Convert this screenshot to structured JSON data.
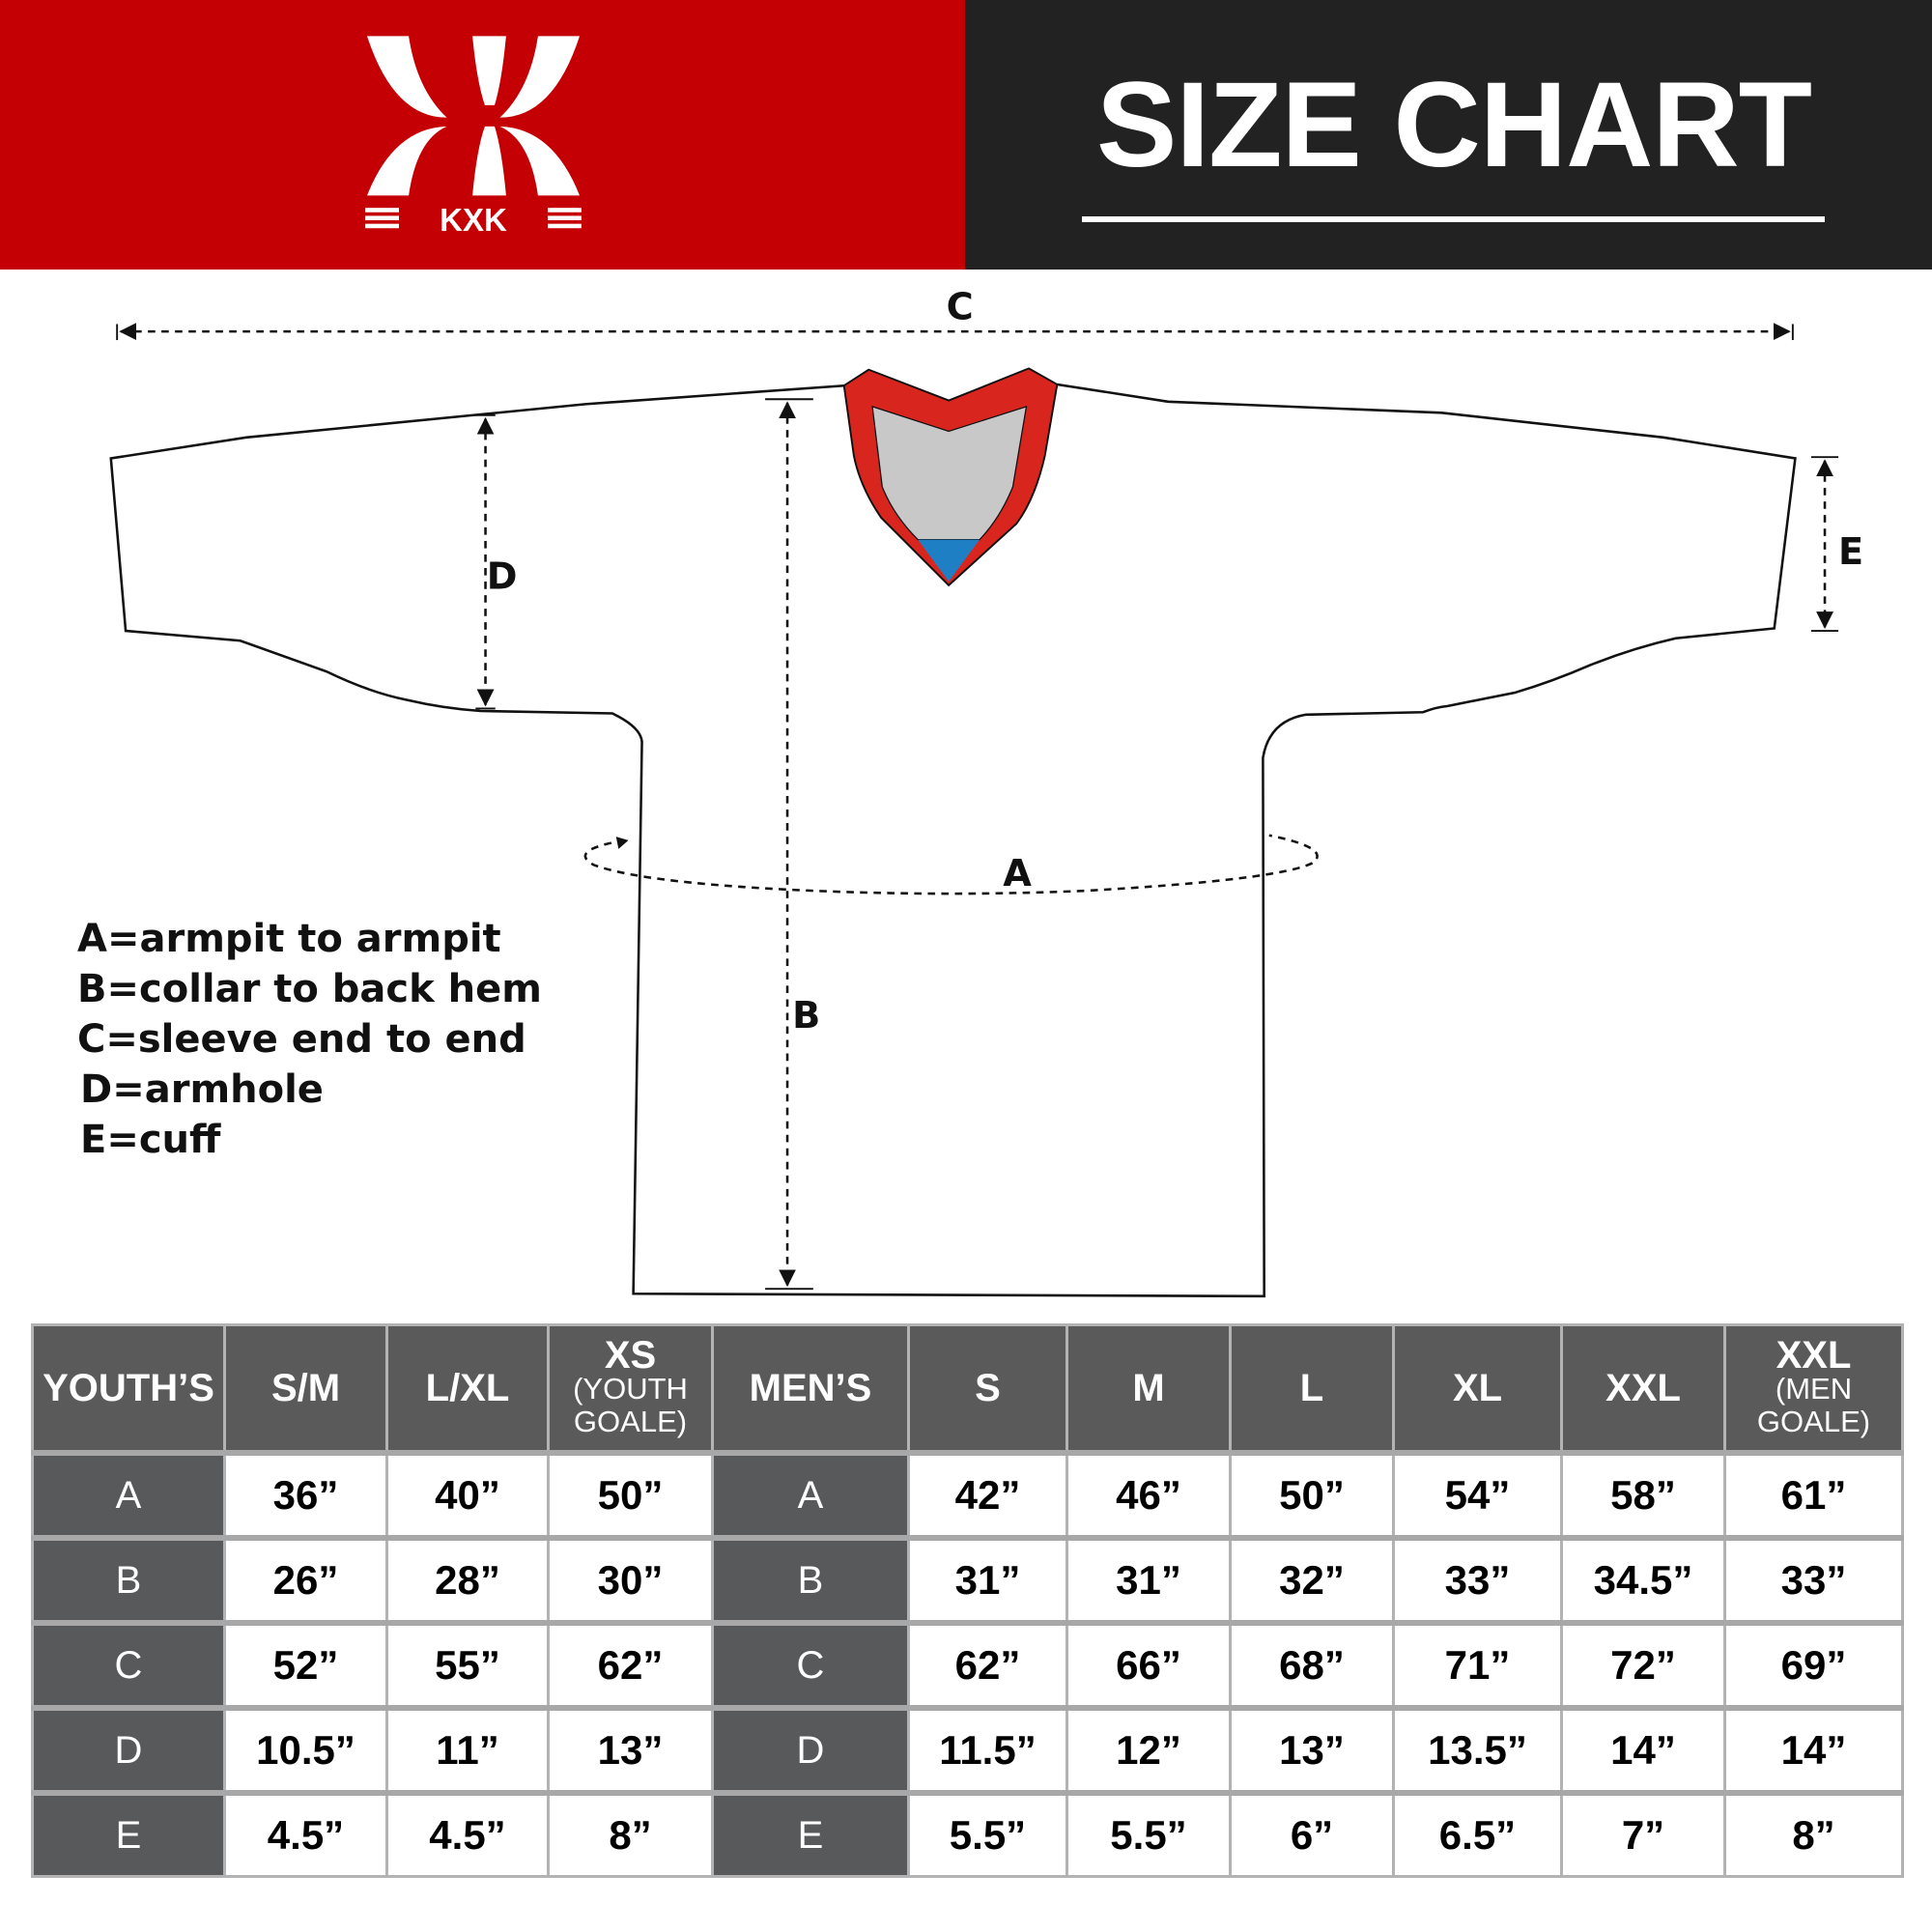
{
  "header": {
    "brand": "KXK",
    "title": "SIZE CHART",
    "colors": {
      "brand_red": "#c40005",
      "header_dark": "#222222"
    }
  },
  "diagram": {
    "labels": {
      "a": "A",
      "b": "B",
      "c": "C",
      "d": "D",
      "e": "E"
    },
    "colors": {
      "collar_red": "#d8261f",
      "collar_gray": "#c8c8c8",
      "collar_blue": "#1f7fc4"
    }
  },
  "legend": [
    "A=armpit to armpit",
    "B=collar to back hem",
    "C=sleeve end to end",
    "D=armhole",
    "E=cuff"
  ],
  "table": {
    "youth_header": "YOUTH’S",
    "men_header": "MEN’S",
    "youth_sizes": [
      {
        "size": "S/M",
        "note": ""
      },
      {
        "size": "L/XL",
        "note": ""
      },
      {
        "size": "XS",
        "note": "(YOUTH GOALE)"
      }
    ],
    "men_sizes": [
      {
        "size": "S",
        "note": ""
      },
      {
        "size": "M",
        "note": ""
      },
      {
        "size": "L",
        "note": ""
      },
      {
        "size": "XL",
        "note": ""
      },
      {
        "size": "XXL",
        "note": ""
      },
      {
        "size": "XXL",
        "note": "(MEN GOALE)"
      }
    ],
    "rows": [
      {
        "label": "A",
        "youth": [
          "36”",
          "40”",
          "50”"
        ],
        "men": [
          "42”",
          "46”",
          "50”",
          "54”",
          "58”",
          "61”"
        ]
      },
      {
        "label": "B",
        "youth": [
          "26”",
          "28”",
          "30”"
        ],
        "men": [
          "31”",
          "31”",
          "32”",
          "33”",
          "34.5”",
          "33”"
        ]
      },
      {
        "label": "C",
        "youth": [
          "52”",
          "55”",
          "62”"
        ],
        "men": [
          "62”",
          "66”",
          "68”",
          "71”",
          "72”",
          "69”"
        ]
      },
      {
        "label": "D",
        "youth": [
          "10.5”",
          "11”",
          "13”"
        ],
        "men": [
          "11.5”",
          "12”",
          "13”",
          "13.5”",
          "14”",
          "14”"
        ]
      },
      {
        "label": "E",
        "youth": [
          "4.5”",
          "4.5”",
          "8”"
        ],
        "men": [
          "5.5”",
          "5.5”",
          "6”",
          "6.5”",
          "7”",
          "8”"
        ]
      }
    ]
  }
}
